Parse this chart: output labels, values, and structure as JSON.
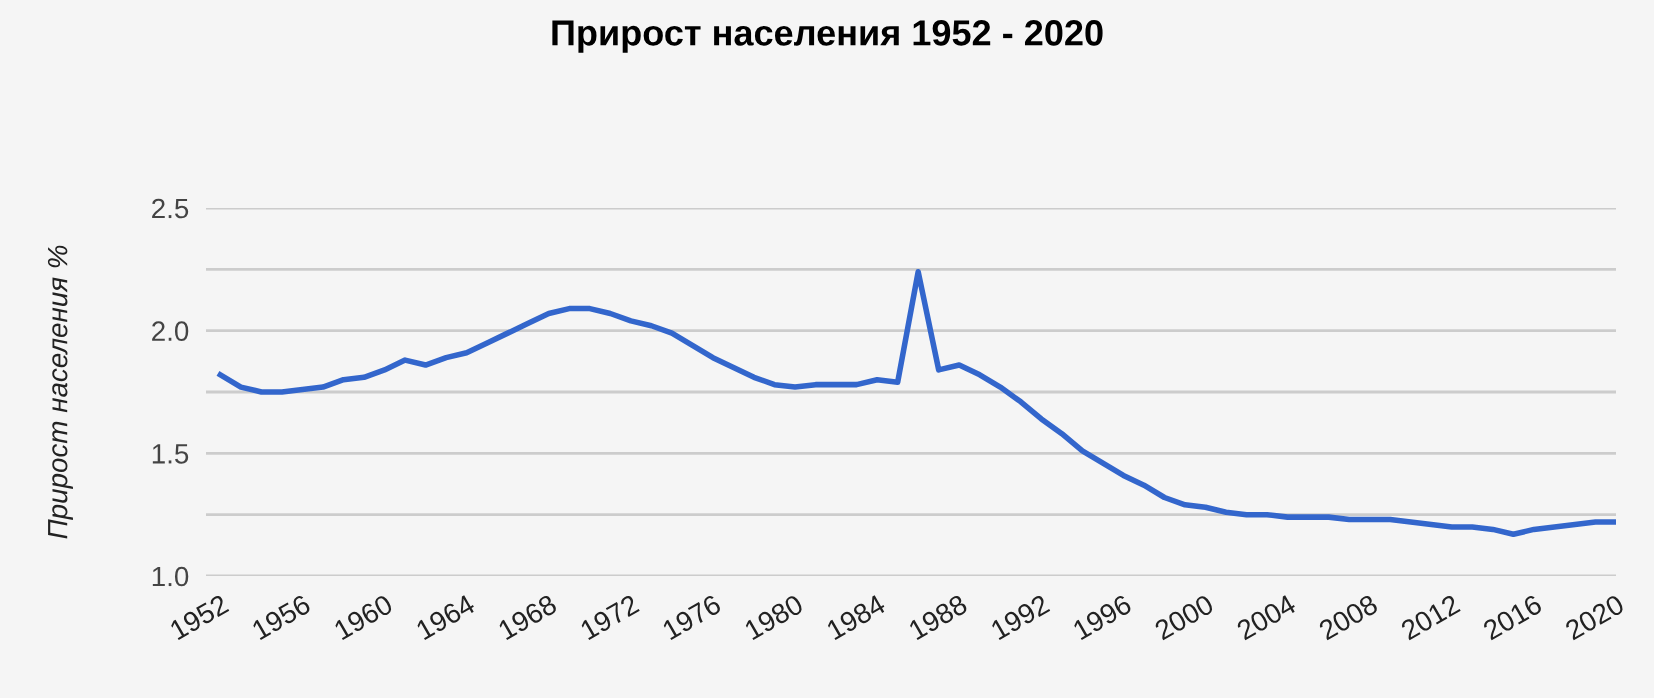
{
  "chart_data": {
    "type": "line",
    "title": "Прирост населения 1952 - 2020",
    "ylabel": "Прирост населения %",
    "x": [
      1952,
      1953,
      1954,
      1955,
      1956,
      1957,
      1958,
      1959,
      1960,
      1961,
      1962,
      1963,
      1964,
      1965,
      1966,
      1967,
      1968,
      1969,
      1970,
      1971,
      1972,
      1973,
      1974,
      1975,
      1976,
      1977,
      1978,
      1979,
      1980,
      1981,
      1982,
      1983,
      1984,
      1985,
      1986,
      1987,
      1988,
      1989,
      1990,
      1991,
      1992,
      1993,
      1994,
      1995,
      1996,
      1997,
      1998,
      1999,
      2000,
      2001,
      2002,
      2003,
      2004,
      2005,
      2006,
      2007,
      2008,
      2009,
      2010,
      2011,
      2012,
      2013,
      2014,
      2015,
      2016,
      2017,
      2018,
      2019,
      2020
    ],
    "series": [
      {
        "color": "#3366cc",
        "values": [
          1.82,
          1.77,
          1.75,
          1.75,
          1.76,
          1.77,
          1.8,
          1.81,
          1.84,
          1.88,
          1.86,
          1.89,
          1.91,
          1.95,
          1.99,
          2.03,
          2.07,
          2.09,
          2.09,
          2.07,
          2.04,
          2.02,
          1.99,
          1.94,
          1.89,
          1.85,
          1.81,
          1.78,
          1.77,
          1.78,
          1.78,
          1.78,
          1.8,
          1.79,
          2.24,
          1.84,
          1.86,
          1.82,
          1.77,
          1.71,
          1.64,
          1.58,
          1.51,
          1.46,
          1.41,
          1.37,
          1.32,
          1.29,
          1.28,
          1.26,
          1.25,
          1.25,
          1.24,
          1.24,
          1.24,
          1.23,
          1.23,
          1.23,
          1.22,
          1.21,
          1.2,
          1.2,
          1.19,
          1.17,
          1.19,
          1.2,
          1.21,
          1.22,
          1.22
        ]
      }
    ],
    "xlim": [
      1951.3,
      2020
    ],
    "xticks": [
      1952,
      1956,
      1960,
      1964,
      1968,
      1972,
      1976,
      1980,
      1984,
      1988,
      1992,
      1996,
      2000,
      2004,
      2008,
      2012,
      2016,
      2020
    ],
    "ylim": [
      1.0,
      2.5
    ],
    "yticks": [
      {
        "value": 1.0,
        "label": "1.0"
      },
      {
        "value": 1.25,
        "label": null
      },
      1.5,
      {
        "value": 1.75,
        "label": null
      },
      {
        "value": 2.0,
        "label": "2.0"
      },
      {
        "value": 2.25,
        "label": null
      },
      2.5
    ],
    "grid": "y",
    "legend": false,
    "marker": "none",
    "line_style": "solid"
  }
}
